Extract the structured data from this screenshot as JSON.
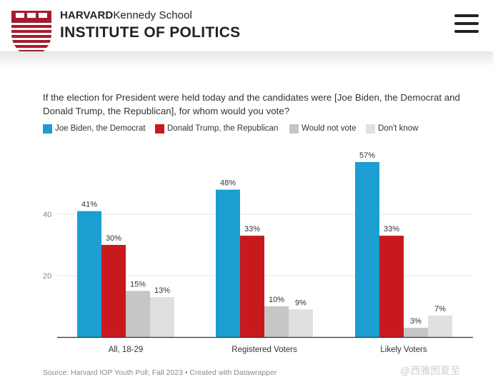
{
  "header": {
    "brand_strong": "HARVARD",
    "brand_light": "Kennedy School",
    "brand_main": "INSTITUTE OF POLITICS"
  },
  "icons": {
    "logo": "harvard-shield-icon",
    "menu": "hamburger-menu-icon"
  },
  "colors": {
    "biden": "#1b9ed1",
    "trump": "#c8191f",
    "would_not_vote": "#c6c6c6",
    "dont_know": "#e0e0e0",
    "grid": "#e6e6e6",
    "shield_red": "#a51c30"
  },
  "question": "If the election for President were held today and the candidates were [Joe Biden, the Democrat and Donald Trump, the Republican], for whom would you vote?",
  "chart_data": {
    "type": "bar",
    "categories": [
      "All, 18-29",
      "Registered Voters",
      "Likely Voters"
    ],
    "series": [
      {
        "name": "Joe Biden, the Democrat",
        "values": [
          41,
          48,
          57
        ],
        "labels": [
          "41%",
          "48%",
          "57%"
        ]
      },
      {
        "name": "Donald Trump, the Republican",
        "values": [
          30,
          33,
          33
        ],
        "labels": [
          "30%",
          "33%",
          "33%"
        ]
      },
      {
        "name": "Would not vote",
        "values": [
          15,
          10,
          3
        ],
        "labels": [
          "15%",
          "10%",
          "3%"
        ]
      },
      {
        "name": "Don't know",
        "values": [
          13,
          9,
          7
        ],
        "labels": [
          "13%",
          "9%",
          "7%"
        ]
      }
    ],
    "yticks": [
      20,
      40
    ],
    "ylim": [
      0,
      60
    ],
    "grid": true,
    "legend": "top-left"
  },
  "source": "Source: Harvard IOP Youth Poll; Fall 2023 • Created with Datawrapper",
  "watermark": "@西雅图夏至"
}
